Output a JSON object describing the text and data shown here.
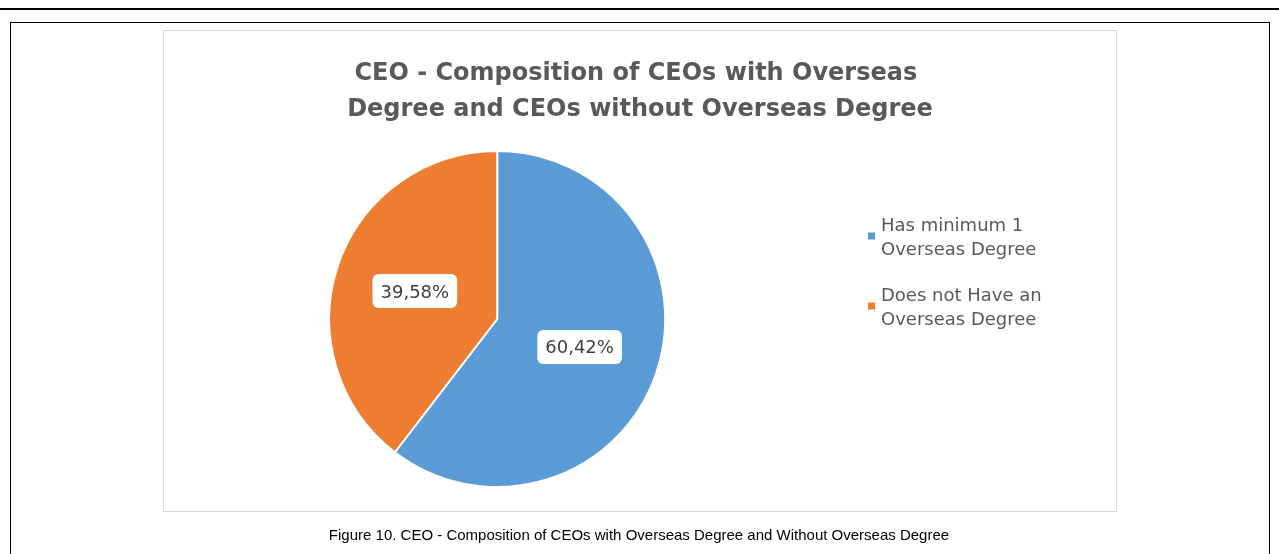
{
  "chart_data": {
    "type": "pie",
    "title": "CEO - Composition of CEOs with Overseas Degree and CEOs without Overseas Degree",
    "categories": [
      "Has minimum 1 Overseas Degree",
      "Does not Have an Overseas Degree"
    ],
    "values": [
      60.42,
      39.58
    ],
    "value_labels": [
      "60,42%",
      "39,58%"
    ],
    "colors": [
      "#5b9bd5",
      "#ed7d31"
    ],
    "legend": "right",
    "annotations": [
      "Figure 10. CEO - Composition of CEOs with Overseas Degree and Without Overseas Degree"
    ]
  }
}
